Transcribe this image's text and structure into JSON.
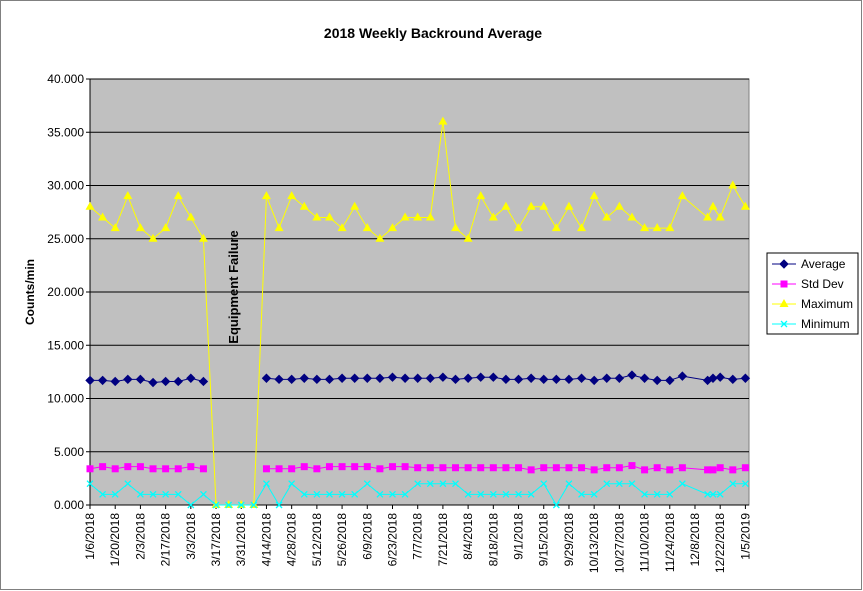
{
  "chart_data": {
    "type": "line",
    "title": "2018 Weekly Backround Average",
    "xlabel": "",
    "ylabel": "Counts/min",
    "ylim": [
      0,
      40
    ],
    "yticks": [
      "0.000",
      "5.000",
      "10.000",
      "15.000",
      "20.000",
      "25.000",
      "30.000",
      "35.000",
      "40.000"
    ],
    "ytick_values": [
      0,
      5,
      10,
      15,
      20,
      25,
      30,
      35,
      40
    ],
    "xlim_days_from_first_tick": [
      0,
      366
    ],
    "xtick_labels": [
      "1/6/2018",
      "1/20/2018",
      "2/3/2018",
      "2/17/2018",
      "3/3/2018",
      "3/17/2018",
      "3/31/2018",
      "4/14/2018",
      "4/28/2018",
      "5/12/2018",
      "5/26/2018",
      "6/9/2018",
      "6/23/2018",
      "7/7/2018",
      "7/21/2018",
      "8/4/2018",
      "8/18/2018",
      "9/1/2018",
      "9/15/2018",
      "9/29/2018",
      "10/13/2018",
      "10/27/2018",
      "11/10/2018",
      "11/24/2018",
      "12/8/2018",
      "12/22/2018",
      "1/5/2019"
    ],
    "grid": true,
    "legend_position": "right",
    "annotation": "Equipment Failure",
    "x_days": [
      0,
      7,
      14,
      21,
      28,
      35,
      42,
      49,
      56,
      63,
      70,
      77,
      84,
      91,
      98,
      105,
      112,
      119,
      126,
      133,
      140,
      147,
      154,
      161,
      168,
      175,
      182,
      189,
      196,
      203,
      210,
      217,
      224,
      231,
      238,
      245,
      252,
      259,
      266,
      273,
      280,
      287,
      294,
      301,
      308,
      315,
      322,
      329,
      343,
      346,
      350,
      357,
      364
    ],
    "series": [
      {
        "name": "Average",
        "color": "#000080",
        "marker": "diamond",
        "values": [
          11.7,
          11.7,
          11.6,
          11.8,
          11.8,
          11.5,
          11.6,
          11.6,
          11.9,
          11.6,
          null,
          null,
          null,
          null,
          11.9,
          11.8,
          11.8,
          11.9,
          11.8,
          11.8,
          11.9,
          11.9,
          11.9,
          11.9,
          12.0,
          11.9,
          11.9,
          11.9,
          12.0,
          11.8,
          11.9,
          12.0,
          12.0,
          11.8,
          11.8,
          11.9,
          11.8,
          11.8,
          11.8,
          11.9,
          11.7,
          11.9,
          11.9,
          12.2,
          11.9,
          11.7,
          11.7,
          12.1,
          11.7,
          11.9,
          12.0,
          11.8,
          11.9
        ]
      },
      {
        "name": "Std Dev",
        "color": "#FF00FF",
        "marker": "square",
        "values": [
          3.4,
          3.6,
          3.4,
          3.6,
          3.6,
          3.4,
          3.4,
          3.4,
          3.6,
          3.4,
          null,
          null,
          null,
          null,
          3.4,
          3.4,
          3.4,
          3.6,
          3.4,
          3.6,
          3.6,
          3.6,
          3.6,
          3.4,
          3.6,
          3.6,
          3.5,
          3.5,
          3.5,
          3.5,
          3.5,
          3.5,
          3.5,
          3.5,
          3.5,
          3.3,
          3.5,
          3.5,
          3.5,
          3.5,
          3.3,
          3.5,
          3.5,
          3.7,
          3.3,
          3.5,
          3.3,
          3.5,
          3.3,
          3.3,
          3.5,
          3.3,
          3.5
        ]
      },
      {
        "name": "Maximum",
        "color": "#FFFF00",
        "marker": "triangle",
        "values": [
          28,
          27,
          26,
          29,
          26,
          25,
          26,
          29,
          27,
          25,
          0,
          0,
          0,
          0,
          29,
          26,
          29,
          28,
          27,
          27,
          26,
          28,
          26,
          25,
          26,
          27,
          27,
          27,
          36,
          26,
          25,
          29,
          27,
          28,
          26,
          28,
          28,
          26,
          28,
          26,
          29,
          27,
          28,
          27,
          26,
          26,
          26,
          29,
          27,
          28,
          27,
          30,
          28
        ]
      },
      {
        "name": "Minimum",
        "color": "#00FFFF",
        "marker": "x",
        "values": [
          2,
          1,
          1,
          2,
          1,
          1,
          1,
          1,
          0,
          1,
          0,
          0,
          0,
          0,
          2,
          0,
          2,
          1,
          1,
          1,
          1,
          1,
          2,
          1,
          1,
          1,
          2,
          2,
          2,
          2,
          1,
          1,
          1,
          1,
          1,
          1,
          2,
          0,
          2,
          1,
          1,
          2,
          2,
          2,
          1,
          1,
          1,
          2,
          1,
          1,
          1,
          2,
          2
        ]
      }
    ]
  }
}
